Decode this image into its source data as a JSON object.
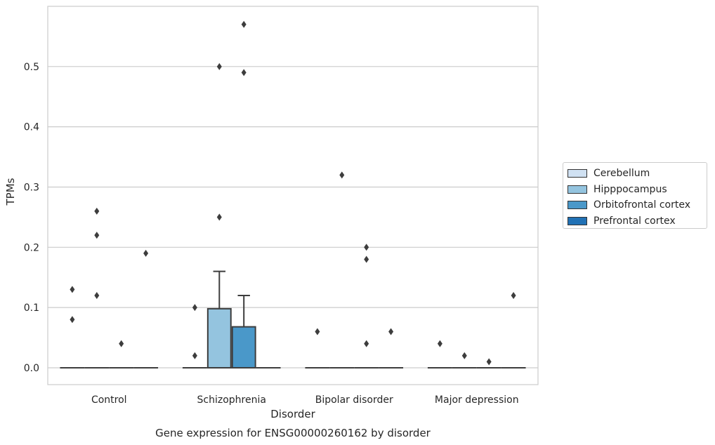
{
  "chart_data": {
    "type": "box",
    "title": "Gene expression for ENSG00000260162 by disorder",
    "xlabel": "Disorder",
    "ylabel": "TPMs",
    "categories": [
      "Control",
      "Schizophrenia",
      "Bipolar disorder",
      "Major depression"
    ],
    "ylim": [
      -0.028,
      0.6
    ],
    "yticks": [
      0.0,
      0.1,
      0.2,
      0.3,
      0.4,
      0.5
    ],
    "ytick_labels": [
      "0.0",
      "0.1",
      "0.2",
      "0.3",
      "0.4",
      "0.5"
    ],
    "grid": "horizontal",
    "legend_position": "right",
    "series": [
      {
        "name": "Cerebellum",
        "color": "#d0e1f2",
        "boxes": [
          {
            "category": "Control",
            "q1": 0,
            "median": 0,
            "q3": 0,
            "whisker_low": 0,
            "whisker_high": 0,
            "outliers": [
              0.13,
              0.08
            ]
          },
          {
            "category": "Schizophrenia",
            "q1": 0,
            "median": 0,
            "q3": 0,
            "whisker_low": 0,
            "whisker_high": 0,
            "outliers": [
              0.1,
              0.02
            ]
          },
          {
            "category": "Bipolar disorder",
            "q1": 0,
            "median": 0,
            "q3": 0,
            "whisker_low": 0,
            "whisker_high": 0,
            "outliers": [
              0.06
            ]
          },
          {
            "category": "Major depression",
            "q1": 0,
            "median": 0,
            "q3": 0,
            "whisker_low": 0,
            "whisker_high": 0,
            "outliers": [
              0.04
            ]
          }
        ]
      },
      {
        "name": "Hipppocampus",
        "color": "#94c4df",
        "boxes": [
          {
            "category": "Control",
            "q1": 0,
            "median": 0,
            "q3": 0,
            "whisker_low": 0,
            "whisker_high": 0,
            "outliers": [
              0.26,
              0.22,
              0.12
            ]
          },
          {
            "category": "Schizophrenia",
            "q1": 0,
            "median": 0,
            "q3": 0.098,
            "whisker_low": 0,
            "whisker_high": 0.16,
            "outliers": [
              0.5,
              0.25
            ]
          },
          {
            "category": "Bipolar disorder",
            "q1": 0,
            "median": 0,
            "q3": 0,
            "whisker_low": 0,
            "whisker_high": 0,
            "outliers": [
              0.32
            ]
          },
          {
            "category": "Major depression",
            "q1": 0,
            "median": 0,
            "q3": 0,
            "whisker_low": 0,
            "whisker_high": 0,
            "outliers": [
              0.02
            ]
          }
        ]
      },
      {
        "name": "Orbitofrontal cortex",
        "color": "#4a98c9",
        "boxes": [
          {
            "category": "Control",
            "q1": 0,
            "median": 0,
            "q3": 0,
            "whisker_low": 0,
            "whisker_high": 0,
            "outliers": [
              0.04
            ]
          },
          {
            "category": "Schizophrenia",
            "q1": 0,
            "median": 0,
            "q3": 0.068,
            "whisker_low": 0,
            "whisker_high": 0.12,
            "outliers": [
              0.57,
              0.49
            ]
          },
          {
            "category": "Bipolar disorder",
            "q1": 0,
            "median": 0,
            "q3": 0,
            "whisker_low": 0,
            "whisker_high": 0,
            "outliers": [
              0.2,
              0.18,
              0.04
            ]
          },
          {
            "category": "Major depression",
            "q1": 0,
            "median": 0,
            "q3": 0,
            "whisker_low": 0,
            "whisker_high": 0,
            "outliers": [
              0.01
            ]
          }
        ]
      },
      {
        "name": "Prefrontal cortex",
        "color": "#2171b5",
        "boxes": [
          {
            "category": "Control",
            "q1": 0,
            "median": 0,
            "q3": 0,
            "whisker_low": 0,
            "whisker_high": 0,
            "outliers": [
              0.19
            ]
          },
          {
            "category": "Schizophrenia",
            "q1": 0,
            "median": 0,
            "q3": 0,
            "whisker_low": 0,
            "whisker_high": 0,
            "outliers": []
          },
          {
            "category": "Bipolar disorder",
            "q1": 0,
            "median": 0,
            "q3": 0,
            "whisker_low": 0,
            "whisker_high": 0,
            "outliers": [
              0.06
            ]
          },
          {
            "category": "Major depression",
            "q1": 0,
            "median": 0,
            "q3": 0,
            "whisker_low": 0,
            "whisker_high": 0,
            "outliers": [
              0.12
            ]
          }
        ]
      }
    ]
  },
  "colors": {
    "grid": "#cccccc",
    "frame": "#cccccc",
    "edge": "#3d3d3d",
    "text": "#262626"
  }
}
